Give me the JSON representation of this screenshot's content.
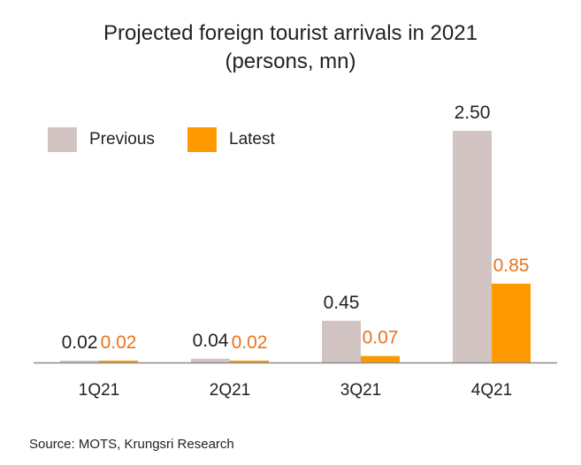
{
  "colors": {
    "previous": "#d3c4c4",
    "latest": "#ff9900",
    "latest_label": "#e8731e",
    "axis": "#8c8c8c",
    "text": "#222222"
  },
  "chart_data": {
    "type": "bar",
    "title": "Projected foreign tourist arrivals in 2021",
    "subtitle": "(persons, mn)",
    "categories": [
      "1Q21",
      "2Q21",
      "3Q21",
      "4Q21"
    ],
    "series": [
      {
        "name": "Previous",
        "values": [
          0.02,
          0.04,
          0.45,
          2.5
        ],
        "labels": [
          "0.02",
          "0.04",
          "0.45",
          "2.50"
        ]
      },
      {
        "name": "Latest",
        "values": [
          0.02,
          0.02,
          0.07,
          0.85
        ],
        "labels": [
          "0.02",
          "0.02",
          "0.07",
          "0.85"
        ]
      }
    ],
    "ylim": [
      0,
      2.5
    ],
    "grid": false,
    "legend_position": "top-left"
  },
  "source": "Source: MOTS, Krungsri Research"
}
